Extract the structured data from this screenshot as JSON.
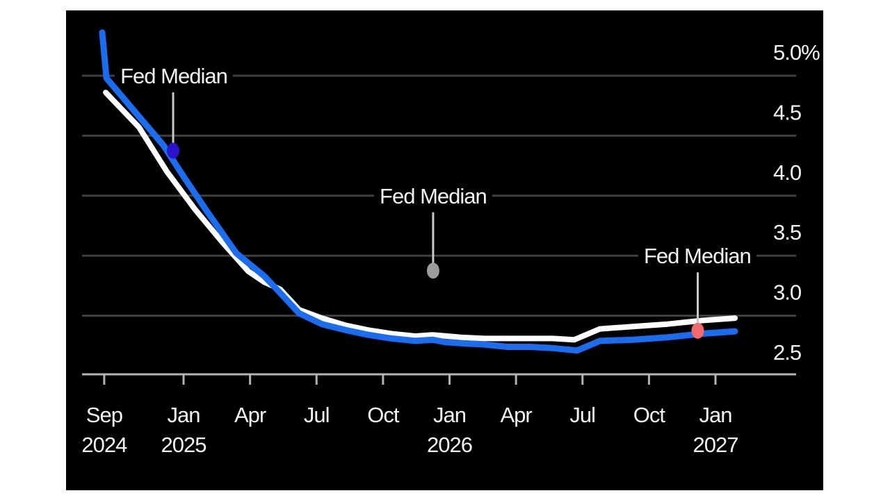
{
  "page": {
    "background": "#ffffff",
    "panel_background": "#000000"
  },
  "chart_data": {
    "type": "line",
    "title": "",
    "legend": "none",
    "grid": "horizontal",
    "y_axis": {
      "side": "right",
      "unit": "percent",
      "min": 2.5,
      "max": 5.0,
      "tick_values": [
        5.0,
        4.5,
        4.0,
        3.5,
        3.0,
        2.5
      ],
      "tick_labels": [
        "5.0%",
        "4.5",
        "4.0",
        "3.5",
        "3.0",
        "2.5"
      ]
    },
    "x_axis": {
      "start": "Sep 2024",
      "end": "Jan 2027",
      "ticks": [
        {
          "label": "Sep",
          "year": "2024",
          "m": 0.42
        },
        {
          "label": "Jan",
          "year": "2025",
          "m": 4
        },
        {
          "label": "Apr",
          "m": 7
        },
        {
          "label": "Jul",
          "m": 10
        },
        {
          "label": "Oct",
          "m": 13
        },
        {
          "label": "Jan",
          "year": "2026",
          "m": 16
        },
        {
          "label": "Apr",
          "m": 19
        },
        {
          "label": "Jul",
          "m": 22
        },
        {
          "label": "Oct",
          "m": 25
        },
        {
          "label": "Jan",
          "year": "2027",
          "m": 28
        }
      ]
    },
    "series": [
      {
        "name": "white-line",
        "color": "#ffffff",
        "stroke_width": 8,
        "points": [
          [
            0.49,
            4.86
          ],
          [
            1.99,
            4.57
          ],
          [
            3.25,
            4.2
          ],
          [
            4.5,
            3.89
          ],
          [
            5.76,
            3.61
          ],
          [
            6.92,
            3.37
          ],
          [
            7.64,
            3.28
          ],
          [
            8.36,
            3.22
          ],
          [
            9.21,
            3.05
          ],
          [
            10.24,
            2.98
          ],
          [
            11.31,
            2.92
          ],
          [
            12.34,
            2.88
          ],
          [
            13.38,
            2.85
          ],
          [
            14.45,
            2.83
          ],
          [
            15.23,
            2.84
          ],
          [
            16.52,
            2.82
          ],
          [
            17.58,
            2.81
          ],
          [
            18.62,
            2.81
          ],
          [
            19.62,
            2.81
          ],
          [
            20.66,
            2.81
          ],
          [
            21.63,
            2.8
          ],
          [
            22.79,
            2.89
          ],
          [
            24.27,
            2.91
          ],
          [
            25.84,
            2.93
          ],
          [
            27.4,
            2.96
          ],
          [
            28.88,
            2.98
          ]
        ]
      },
      {
        "name": "blue-line",
        "color": "#1a6cf0",
        "stroke_width": 9,
        "points": [
          [
            0.33,
            5.36
          ],
          [
            0.52,
            4.98
          ],
          [
            1.99,
            4.66
          ],
          [
            3.09,
            4.42
          ],
          [
            4.0,
            4.16
          ],
          [
            5.13,
            3.85
          ],
          [
            6.38,
            3.52
          ],
          [
            7.64,
            3.33
          ],
          [
            8.36,
            3.19
          ],
          [
            9.21,
            3.02
          ],
          [
            10.24,
            2.93
          ],
          [
            11.31,
            2.88
          ],
          [
            12.34,
            2.84
          ],
          [
            13.38,
            2.81
          ],
          [
            14.45,
            2.79
          ],
          [
            15.23,
            2.8
          ],
          [
            15.8,
            2.78
          ],
          [
            16.52,
            2.77
          ],
          [
            17.58,
            2.76
          ],
          [
            18.62,
            2.74
          ],
          [
            19.62,
            2.74
          ],
          [
            20.66,
            2.73
          ],
          [
            21.76,
            2.71
          ],
          [
            22.79,
            2.79
          ],
          [
            24.27,
            2.8
          ],
          [
            25.84,
            2.82
          ],
          [
            27.4,
            2.85
          ],
          [
            28.88,
            2.87
          ]
        ]
      }
    ],
    "annotations": [
      {
        "label": "Fed Median",
        "label_m": 3.56,
        "label_v": 5.0,
        "dot_m": 3.53,
        "dot_value": 4.375,
        "dot_color": "#2b12cd"
      },
      {
        "label": "Fed Median",
        "label_m": 15.26,
        "label_v": 4.0,
        "dot_m": 15.26,
        "dot_value": 3.375,
        "dot_color": "#9c9c9c"
      },
      {
        "label": "Fed Median",
        "label_m": 27.18,
        "label_v": 3.5,
        "dot_m": 27.2,
        "dot_value": 2.875,
        "dot_color": "#f3696e"
      }
    ],
    "colors": {
      "gridline": "#3f3f3f",
      "axis": "#b3b3b3",
      "pointer": "#c9c9c9",
      "text": "#f2f2f2"
    }
  }
}
